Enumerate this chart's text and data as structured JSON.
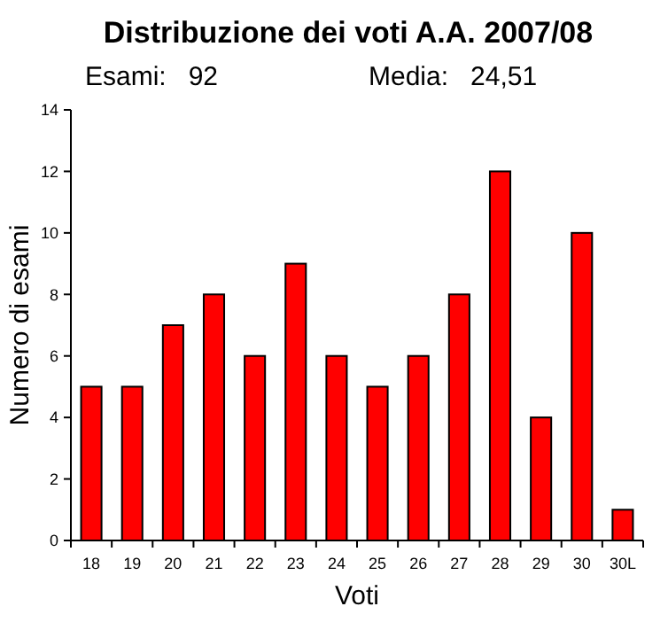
{
  "chart_data": {
    "type": "bar",
    "title": "Distribuzione dei voti A.A. 2007/08",
    "annotations": [
      "Esami:   92",
      "Media:   24,51"
    ],
    "xlabel": "Voti",
    "ylabel": "Numero di esami",
    "categories": [
      "18",
      "19",
      "20",
      "21",
      "22",
      "23",
      "24",
      "25",
      "26",
      "27",
      "28",
      "29",
      "30",
      "30L"
    ],
    "values": [
      5,
      5,
      7,
      8,
      6,
      9,
      6,
      5,
      6,
      8,
      12,
      4,
      10,
      1
    ],
    "color": "#ff0000",
    "ylim": [
      0,
      14
    ],
    "yticks": [
      0,
      2,
      4,
      6,
      8,
      10,
      12,
      14
    ],
    "grid": false
  }
}
